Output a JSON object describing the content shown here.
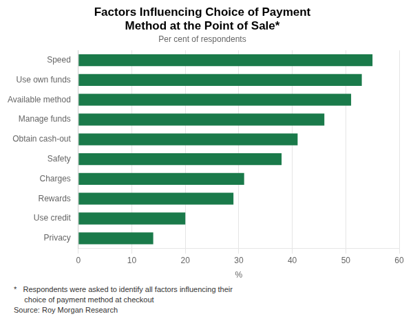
{
  "chart_data": {
    "type": "bar",
    "orientation": "horizontal",
    "title": [
      "Factors Influencing Choice of Payment",
      "Method at the Point of Sale*"
    ],
    "subtitle": "Per cent of respondents",
    "xlabel": "%",
    "categories": [
      "Speed",
      "Use own funds",
      "Available method",
      "Manage funds",
      "Obtain cash-out",
      "Safety",
      "Charges",
      "Rewards",
      "Use credit",
      "Privacy"
    ],
    "values": [
      55,
      53,
      51,
      46,
      41,
      38,
      31,
      29,
      20,
      14
    ],
    "color": "#1a7a4a",
    "xlim": [
      0,
      60
    ],
    "xticks": [
      0,
      10,
      20,
      30,
      40,
      50,
      60
    ],
    "grid": true,
    "annotations": [
      "*   Respondents were asked to identify all factors influencing their",
      "     choice of payment method at checkout",
      "Source: Roy Morgan Research"
    ]
  }
}
